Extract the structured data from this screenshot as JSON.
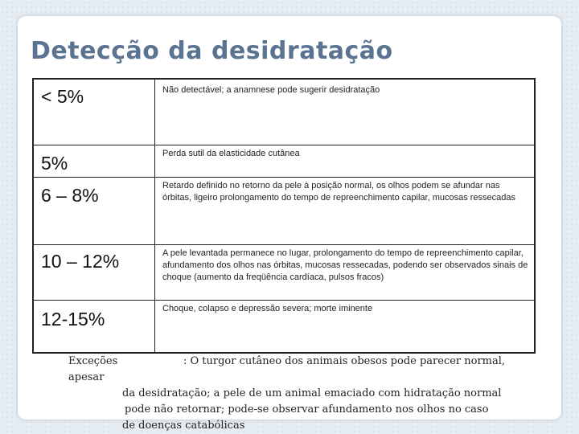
{
  "slide": {
    "title": "Detecção da desidratação",
    "rows": [
      {
        "pct": "< 5%",
        "desc": "Não detectável; a anamnese pode sugerir desidratação"
      },
      {
        "pct": "5%",
        "desc": "Perda sutil da elasticidade cutânea"
      },
      {
        "pct": "6 – 8%",
        "desc": "Retardo definido no retorno da pele à posição normal, os olhos podem se afundar nas órbitas, ligeiro prolongamento do tempo de repreenchimento capilar, mucosas ressecadas"
      },
      {
        "pct": "10 – 12%",
        "desc": "A pele levantada permanece no lugar, prolongamento do tempo de repreenchimento capilar, afundamento dos olhos nas órbitas, mucosas ressecadas, podendo ser observados sinais de choque (aumento da freqüência cardíaca, pulsos fracos)"
      },
      {
        "pct": "12-15%",
        "desc": "Choque, colapso e depressão severa; morte iminente"
      }
    ],
    "note": {
      "label": "Exceções",
      "line1": ": O turgor cutâneo dos animais obesos pode parecer normal, apesar",
      "line2": "da desidratação; a pele de um animal emaciado com hidratação normal",
      "line3": "pode não retornar; pode-se observar afundamento nos olhos no caso",
      "line4": "de doenças catabólicas"
    }
  }
}
